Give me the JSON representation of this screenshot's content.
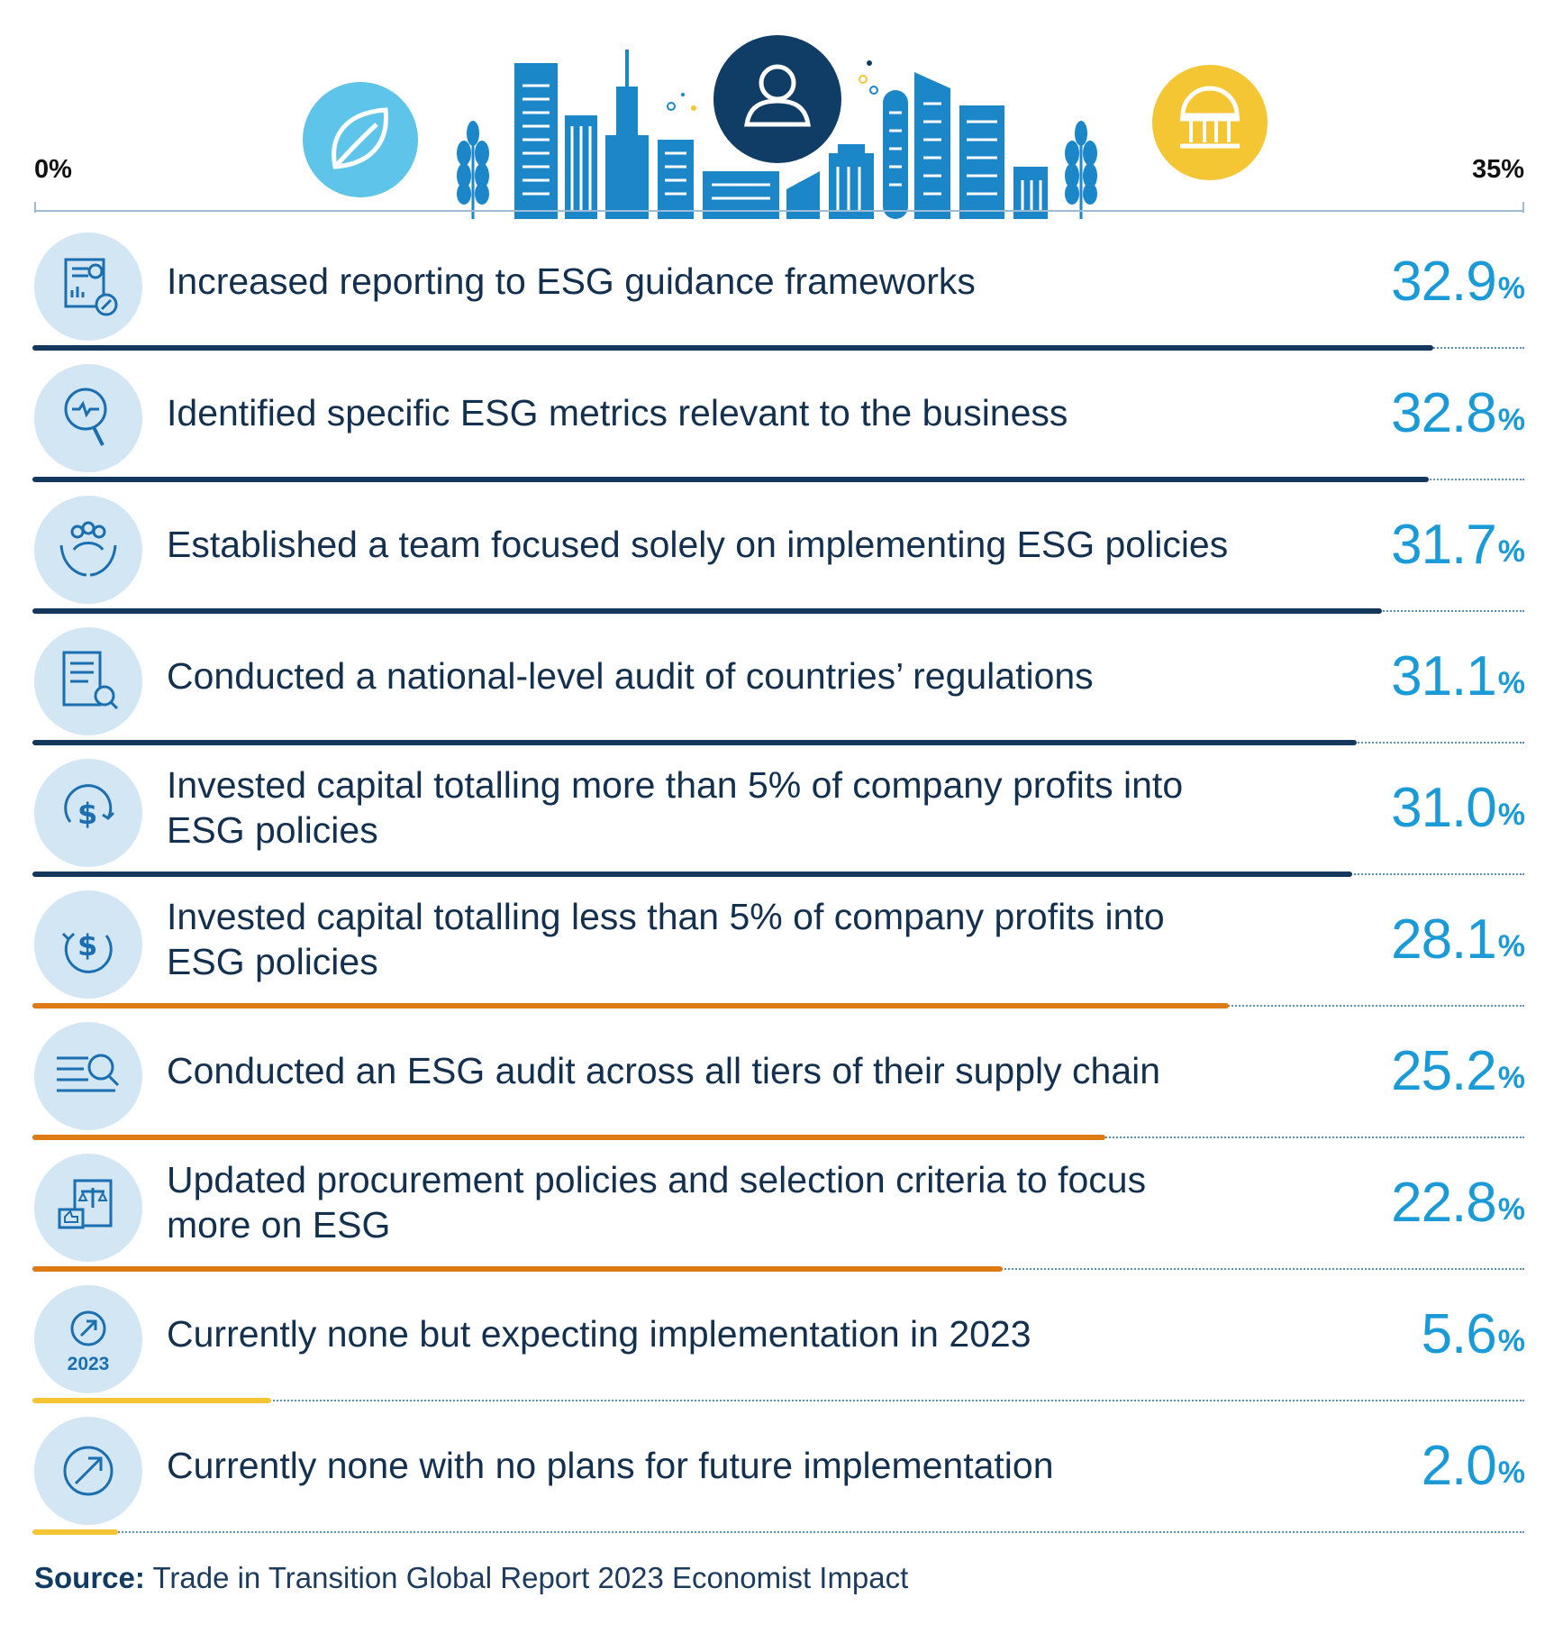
{
  "axis": {
    "min_label": "0%",
    "max_label": "35%"
  },
  "colors": {
    "navy": "#14385c",
    "orange": "#dd7a13",
    "yellow": "#f4c633",
    "value_blue": "#1a9ad6",
    "icon_bg": "#d3e6f3"
  },
  "chart_data": {
    "type": "bar",
    "orientation": "horizontal",
    "xlim": [
      0,
      35
    ],
    "unit": "%",
    "categories": [
      "Increased reporting to ESG guidance frameworks",
      "Identified specific ESG metrics relevant to the business",
      "Established a team focused solely on implementing ESG policies",
      "Conducted a national-level audit of countries’ regulations",
      "Invested capital totalling more than 5% of company profits into ESG policies",
      "Invested capital totalling less than 5% of company profits into ESG policies",
      "Conducted an ESG audit across all tiers of their supply chain",
      "Updated procurement policies and selection criteria to focus more on ESG",
      "Currently none but expecting implementation in 2023",
      "Currently none with no plans for future implementation"
    ],
    "values": [
      32.9,
      32.8,
      31.7,
      31.1,
      31.0,
      28.1,
      25.2,
      22.8,
      5.6,
      2.0
    ],
    "bar_colors": [
      "#14385c",
      "#14385c",
      "#14385c",
      "#14385c",
      "#14385c",
      "#dd7a13",
      "#dd7a13",
      "#dd7a13",
      "#f4c633",
      "#f4c633"
    ]
  },
  "rows": [
    {
      "label": "Increased reporting to ESG guidance frameworks",
      "value": "32.9",
      "unit": "%",
      "icon": "report-chart-icon"
    },
    {
      "label": "Identified specific ESG metrics relevant to the business",
      "value": "32.8",
      "unit": "%",
      "icon": "magnifier-pulse-icon"
    },
    {
      "label": "Established a team focused solely on implementing ESG policies",
      "value": "31.7",
      "unit": "%",
      "icon": "team-hands-icon"
    },
    {
      "label": "Conducted a national-level audit of countries’ regulations",
      "value": "31.1",
      "unit": "%",
      "icon": "document-search-icon"
    },
    {
      "label": "Invested capital totalling more than 5% of company profits into ESG policies",
      "value": "31.0",
      "unit": "%",
      "icon": "dollar-up-cycle-icon"
    },
    {
      "label": "Invested capital totalling less than 5% of company profits into ESG policies",
      "value": "28.1",
      "unit": "%",
      "icon": "dollar-down-cycle-icon"
    },
    {
      "label": "Conducted an ESG audit across all tiers of their supply chain",
      "value": "25.2",
      "unit": "%",
      "icon": "list-search-icon"
    },
    {
      "label": "Updated procurement policies and selection criteria to focus more on ESG",
      "value": "22.8",
      "unit": "%",
      "icon": "scale-thumbs-up-icon"
    },
    {
      "label": "Currently none but expecting implementation in 2023",
      "value": "5.6",
      "unit": "%",
      "icon": "arrow-2023-icon",
      "icon_text": "2023"
    },
    {
      "label": "Currently none with no plans for future implementation",
      "value": "2.0",
      "unit": "%",
      "icon": "arrow-circle-icon"
    }
  ],
  "source": {
    "label": "Source:",
    "text": "Trade in Transition Global Report 2023 Economist Impact"
  }
}
